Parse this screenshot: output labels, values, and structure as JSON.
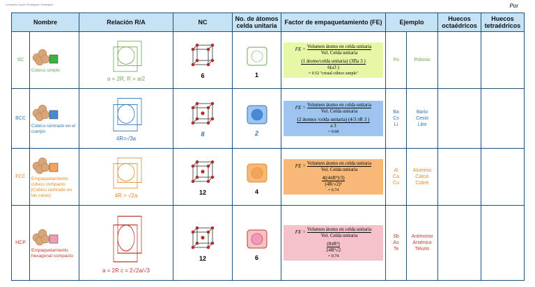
{
  "header": {
    "author": "Leonardo Xavier Rodríguez Velazquez",
    "corner": "Por"
  },
  "table": {
    "columns": [
      "Nombre",
      "Relación R/A",
      "NC",
      "No. de átomos celda unitaria",
      "Factor de empaquetamiento (FE)",
      "Ejemplo",
      "Huecos octaédricos",
      "Huecos tetraédricos"
    ],
    "rows": [
      {
        "code": "SC",
        "name": "Cúbico simple",
        "relation": "a = 2R; R = a/2",
        "nc": "6",
        "atoms": "1",
        "fe": {
          "label": "FE =",
          "num": "Volumen átomo en celda unitaria",
          "den": "Vol. Celda unitaria",
          "expr_num": "(1 átomo/celda unitaria) (3Πa 3 )",
          "expr_den": "6(a3 )",
          "result": "= 0.52 \"cristal cúbico simple\""
        },
        "symbols": [
          "Po"
        ],
        "elements": [
          "Polonio"
        ]
      },
      {
        "code": "BCC",
        "name": "Cúbico centrado en el cuerpo",
        "relation": "4R=√3a",
        "nc": "8",
        "atoms": "2",
        "fe": {
          "label": "FE =",
          "num": "Volumen átomo en celda unitaria",
          "den": "Vol. Celda unitaria",
          "expr_num": "(2 átomos /celda unitaria) (4/3 πR 3 )",
          "expr_den": "a 3",
          "result": "= 0.68"
        },
        "symbols": [
          "Ba",
          "Cs",
          "Li"
        ],
        "elements": [
          "Bario",
          "Cesio",
          "Litio"
        ]
      },
      {
        "code": "FCC",
        "name": "Empaquetamiento cúbico compacto [Cúbico centrado en las caras]",
        "relation": "4R = √2a",
        "nc": "12",
        "atoms": "4",
        "fe": {
          "label": "FE =",
          "num": "Volumen átomo en celda unitaria",
          "den": "Vol. Celda unitaria",
          "expr_num": "4((4πR³)/3)",
          "expr_den": "(4R/√2)³",
          "result": "= 0.74"
        },
        "symbols": [
          "Al",
          "Ca",
          "Cu"
        ],
        "elements": [
          "Aluminio",
          "Calcio",
          "Cobre"
        ]
      },
      {
        "code": "HCP",
        "name": "Empaquetamiento hexagonal compacto",
        "relation": "a = 2R   c = 2√2a/√3",
        "nc": "12",
        "atoms": "6",
        "fe": {
          "label": "FE =",
          "num": "Volumen átomo en celda unitaria",
          "den": "Vol. Celda unitaria",
          "expr_num": "(8πR³)",
          "expr_den": "24R³√2",
          "result": "= 0.74"
        },
        "symbols": [
          "Sb",
          "As",
          "Te"
        ],
        "elements": [
          "Antimonio",
          "Arsénico",
          "Telurio"
        ]
      }
    ]
  }
}
